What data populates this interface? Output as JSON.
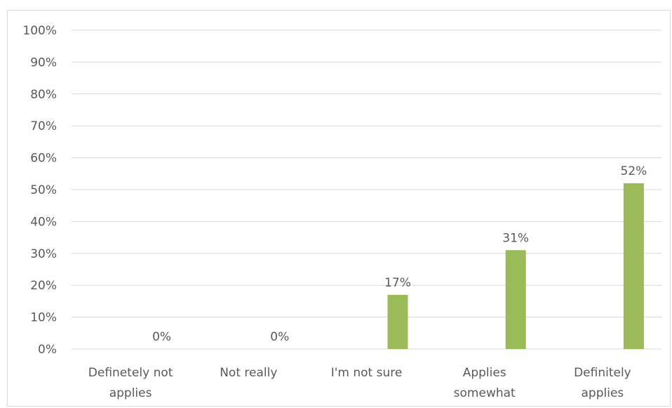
{
  "chart_data": {
    "type": "bar",
    "categories": [
      [
        "Definetely  not",
        "applies"
      ],
      [
        "Not really"
      ],
      [
        "I'm not sure"
      ],
      [
        "Applies",
        "somewhat"
      ],
      [
        "Definitely",
        "applies"
      ]
    ],
    "values": [
      0,
      0,
      17,
      31,
      52
    ],
    "data_labels": [
      "0%",
      "0%",
      "17%",
      "31%",
      "52%"
    ],
    "y_ticks": [
      "0%",
      "10%",
      "20%",
      "30%",
      "40%",
      "50%",
      "60%",
      "70%",
      "80%",
      "90%",
      "100%"
    ],
    "ylim": [
      0,
      100
    ],
    "grid": true,
    "legend": "none",
    "bar_color": "#9bbb59",
    "grid_color": "#d9d9d9",
    "text_color": "#595959"
  }
}
